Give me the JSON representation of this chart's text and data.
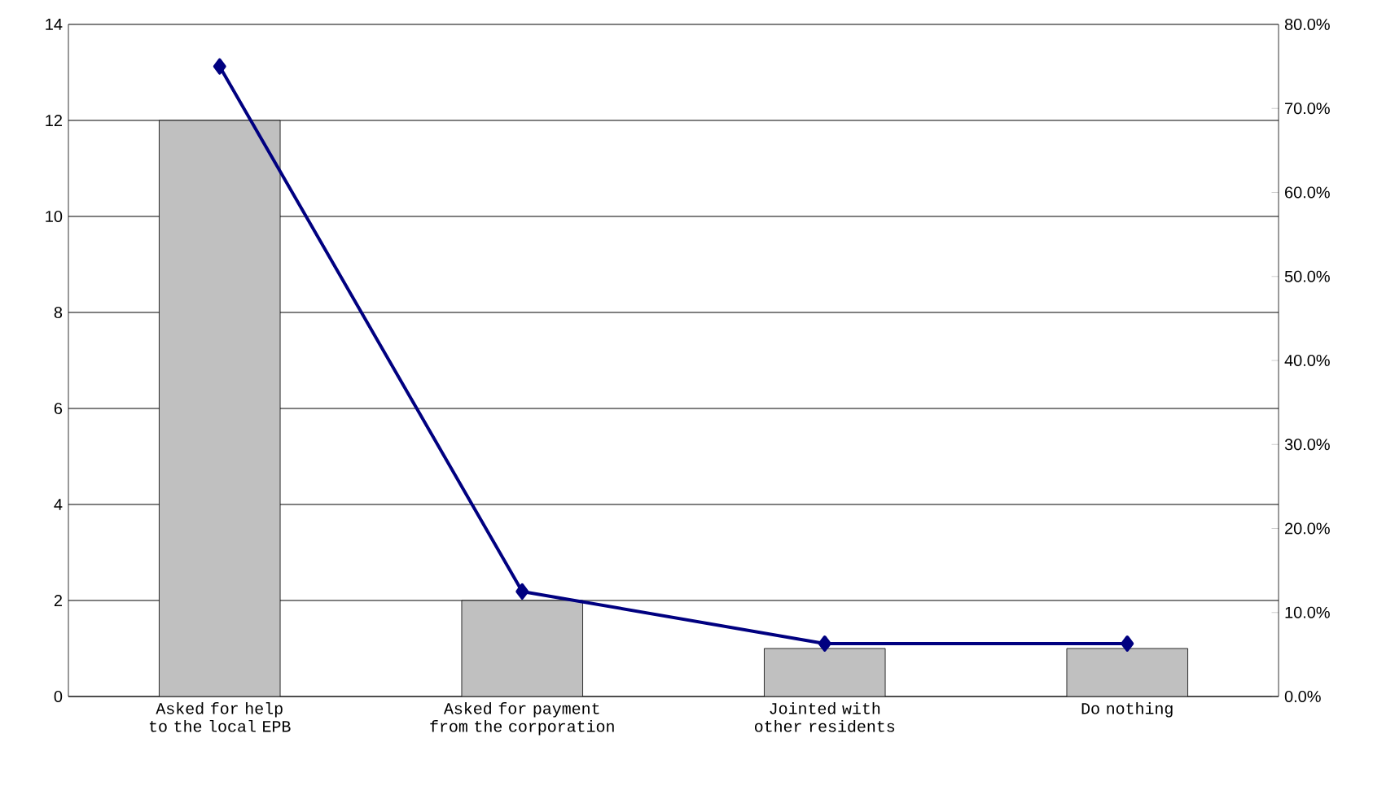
{
  "chart_data": {
    "type": "bar",
    "categories": [
      "Asked for help to the local EPB",
      "Asked for payment from the corporation",
      "Jointed with other residents",
      "Do nothing"
    ],
    "series": [
      {
        "color": "#c0c0c0",
        "values": [
          12,
          2,
          1,
          1
        ]
      },
      {
        "type": "line",
        "axis": "y2",
        "color": "#000080",
        "values": [
          75,
          12.5,
          6.3,
          6.3
        ],
        "marker": "diamond",
        "line_style": "solid"
      }
    ],
    "ylim": [
      0,
      14
    ],
    "yticks": [
      0,
      2,
      4,
      6,
      8,
      10,
      12,
      14
    ],
    "y2lim": [
      0,
      80
    ],
    "y2ticks": [
      {
        "value": 0,
        "label": "0.0%"
      },
      {
        "value": 10,
        "label": "10.0%"
      },
      {
        "value": 20,
        "label": "20.0%"
      },
      {
        "value": 30,
        "label": "30.0%"
      },
      {
        "value": 40,
        "label": "40.0%"
      },
      {
        "value": 50,
        "label": "50.0%"
      },
      {
        "value": 60,
        "label": "60.0%"
      },
      {
        "value": 70,
        "label": "70.0%"
      },
      {
        "value": 80,
        "label": "80.0%"
      }
    ],
    "grid": "y"
  }
}
